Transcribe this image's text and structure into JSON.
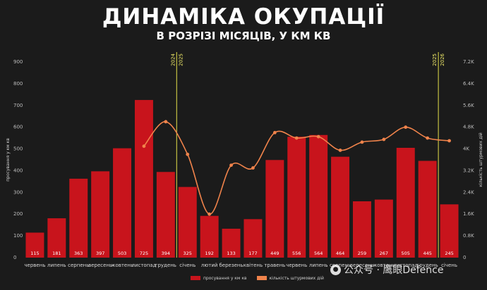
{
  "header": {
    "title": "ДИНАМІКА ОКУПАЦІЇ",
    "subtitle": "В РОЗРІЗІ МІСЯЦІВ, У КМ КВ"
  },
  "legend": {
    "bars_label": "просування у км кв",
    "line_label": "кількість штурмових дій"
  },
  "watermark": {
    "icon": "wechat-icon",
    "text": "公众号 · 鹰眼Defence"
  },
  "colors": {
    "bar": "#c8141c",
    "line": "#f0834b",
    "year_marker": "#e5e04a",
    "background": "#1b1b1b"
  },
  "chart_data": {
    "type": "bar",
    "title": "ДИНАМІКА ОКУПАЦІЇ",
    "subtitle": "В РОЗРІЗІ МІСЯЦІВ, У КМ КВ",
    "categories": [
      "червень",
      "липень",
      "серпень",
      "вересень",
      "жовтень",
      "листопад",
      "грудень",
      "січень",
      "лютий",
      "березень",
      "квітень",
      "травень",
      "червень",
      "липень",
      "серпень",
      "вересень",
      "жовтень",
      "листопад",
      "грудень",
      "січень"
    ],
    "series": [
      {
        "name": "просування у км кв",
        "type": "bar",
        "axis": "left",
        "values": [
          115,
          181,
          363,
          397,
          503,
          725,
          394,
          325,
          192,
          133,
          177,
          449,
          556,
          564,
          464,
          259,
          267,
          505,
          445,
          245
        ]
      },
      {
        "name": "кількість штурмових дій",
        "type": "line",
        "axis": "right",
        "values": [
          null,
          null,
          null,
          null,
          null,
          4100,
          5000,
          3800,
          1600,
          3400,
          3300,
          4600,
          4400,
          4450,
          3950,
          4250,
          4350,
          4800,
          4400,
          4300
        ]
      }
    ],
    "ylabel": "просування у км кв",
    "y2label": "кількість штурмових дій",
    "ylim": [
      0,
      900
    ],
    "y2lim": [
      0,
      7200
    ],
    "yticks": [
      "0",
      "100",
      "200",
      "300",
      "400",
      "500",
      "600",
      "700",
      "800",
      "900"
    ],
    "y2ticks": [
      "0",
      "0.8K",
      "1.6K",
      "2.4K",
      "3.2K",
      "4K",
      "4.8K",
      "5.6K",
      "6.4K",
      "7.2K"
    ],
    "year_markers": [
      {
        "after_index": 6,
        "left": "2024",
        "right": "2025"
      },
      {
        "after_index": 18,
        "left": "2025",
        "right": "2026"
      }
    ],
    "grid": false,
    "legend_position": "bottom"
  }
}
